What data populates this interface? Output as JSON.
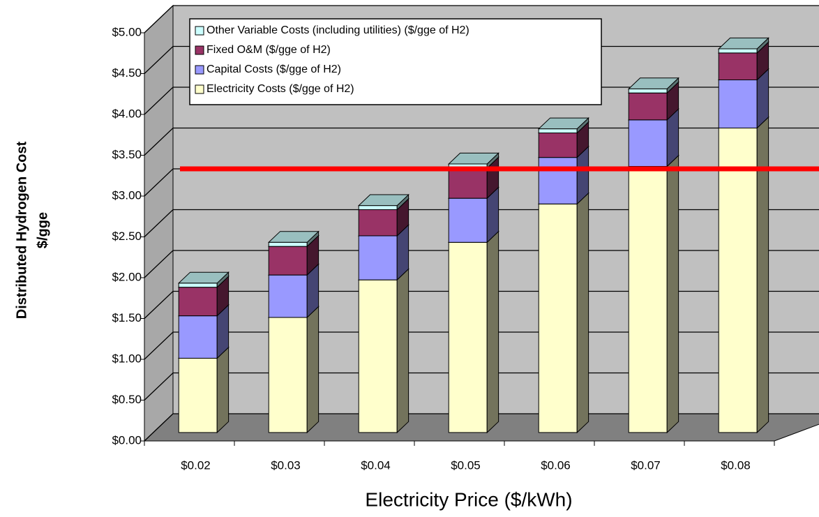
{
  "chart_data": {
    "type": "bar3d_stacked",
    "xlabel": "Electricity Price ($/kWh)",
    "ylabel_lines": [
      "Distributed Hydrogen Cost",
      "$/gge"
    ],
    "categories": [
      "$0.02",
      "$0.03",
      "$0.04",
      "$0.05",
      "$0.06",
      "$0.07",
      "$0.08"
    ],
    "series": [
      {
        "name": "Electricity Costs ($/gge of H2)",
        "color": "#ffffcc",
        "values": [
          0.91,
          1.41,
          1.87,
          2.33,
          2.8,
          3.26,
          3.73
        ]
      },
      {
        "name": "Capital Costs ($/gge of H2)",
        "color": "#9999ff",
        "values": [
          0.52,
          0.52,
          0.54,
          0.54,
          0.57,
          0.57,
          0.59
        ]
      },
      {
        "name": "Fixed O&M ($/gge of H2)",
        "color": "#993366",
        "values": [
          0.35,
          0.35,
          0.32,
          0.37,
          0.3,
          0.33,
          0.33
        ]
      },
      {
        "name": "Other Variable Costs (including utilities) ($/gge of H2)",
        "color": "#ccffff",
        "values": [
          0.05,
          0.05,
          0.05,
          0.05,
          0.05,
          0.05,
          0.05
        ]
      }
    ],
    "ylim": [
      0,
      5
    ],
    "yticks": [
      {
        "value": 0,
        "label": "$0.00"
      },
      {
        "value": 0.5,
        "label": "$0.50"
      },
      {
        "value": 1,
        "label": "$1.00"
      },
      {
        "value": 1.5,
        "label": "$1.50"
      },
      {
        "value": 2,
        "label": "$2.00"
      },
      {
        "value": 2.5,
        "label": "$2.50"
      },
      {
        "value": 3,
        "label": "$3.00"
      },
      {
        "value": 3.5,
        "label": "$3.50"
      },
      {
        "value": 4,
        "label": "$4.00"
      },
      {
        "value": 4.5,
        "label": "$4.50"
      },
      {
        "value": 5,
        "label": "$5.00"
      }
    ],
    "grid": true
  }
}
